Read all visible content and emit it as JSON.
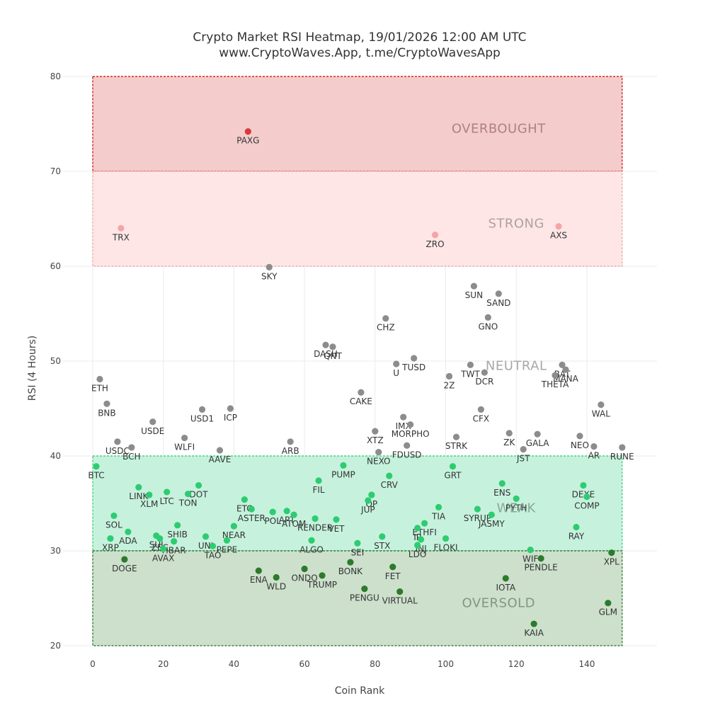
{
  "chart_data": {
    "type": "scatter",
    "title": "Crypto Market RSI Heatmap, 19/01/2026 12:00 AM UTC",
    "subtitle": "www.CryptoWaves.App, t.me/CryptoWavesApp",
    "xlabel": "Coin Rank",
    "ylabel": "RSI (4 Hours)",
    "xlim": [
      -4,
      160
    ],
    "ylim": [
      20,
      80
    ],
    "xticks": [
      0,
      20,
      40,
      60,
      80,
      100,
      120,
      140
    ],
    "yticks": [
      20,
      30,
      40,
      50,
      60,
      70,
      80
    ],
    "grid": true,
    "zones": [
      {
        "name": "OVERBOUGHT",
        "from": 70,
        "to": 80,
        "x_from": 0,
        "x_to": 150,
        "fill": "#f4cccc",
        "stroke": "#cc0000",
        "text": "#b08080",
        "label_x": 115,
        "label_y": 74.5
      },
      {
        "name": "STRONG",
        "from": 60,
        "to": 70,
        "x_from": 0,
        "x_to": 150,
        "fill": "#ffe6e6",
        "stroke": "#e8a0a0",
        "text": "#b0a0a0",
        "label_x": 120,
        "label_y": 64.5
      },
      {
        "name": "NEUTRAL",
        "from": 40,
        "to": 60,
        "x_from": 0,
        "x_to": 150,
        "fill": "none",
        "stroke": "none",
        "text": "#a8a8a8",
        "label_x": 120,
        "label_y": 49.5
      },
      {
        "name": "WEAK",
        "from": 30,
        "to": 40,
        "x_from": 0,
        "x_to": 150,
        "fill": "#c6f2dd",
        "stroke": "#2ecc71",
        "text": "#88a898",
        "label_x": 120,
        "label_y": 34.5
      },
      {
        "name": "OVERSOLD",
        "from": 20,
        "to": 30,
        "x_from": 0,
        "x_to": 150,
        "fill": "#cce0cc",
        "stroke": "#1e6b1e",
        "text": "#809880",
        "label_x": 115,
        "label_y": 24.5
      }
    ],
    "colors": {
      "overbought": "#d63a3a",
      "strong": "#f4a6a6",
      "neutral": "#8c8c8c",
      "weak": "#2ecc71",
      "oversold": "#2d7a2d"
    },
    "points": [
      {
        "name": "PAXG",
        "x": 44,
        "y": 74.2
      },
      {
        "name": "TRX",
        "x": 8,
        "y": 64.0
      },
      {
        "name": "ZRO",
        "x": 97,
        "y": 63.3
      },
      {
        "name": "AXS",
        "x": 132,
        "y": 64.2
      },
      {
        "name": "SKY",
        "x": 50,
        "y": 59.9
      },
      {
        "name": "SUN",
        "x": 108,
        "y": 57.9
      },
      {
        "name": "SAND",
        "x": 115,
        "y": 57.1
      },
      {
        "name": "GNO",
        "x": 112,
        "y": 54.6
      },
      {
        "name": "CHZ",
        "x": 83,
        "y": 54.5
      },
      {
        "name": "DASH",
        "x": 66,
        "y": 51.7
      },
      {
        "name": "QNT",
        "x": 68,
        "y": 51.5
      },
      {
        "name": "TUSD",
        "x": 91,
        "y": 50.3
      },
      {
        "name": "U",
        "x": 86,
        "y": 49.7
      },
      {
        "name": "TWT",
        "x": 107,
        "y": 49.6
      },
      {
        "name": "DCR",
        "x": 111,
        "y": 48.8
      },
      {
        "name": "2Z",
        "x": 101,
        "y": 48.4
      },
      {
        "name": "BAT",
        "x": 133,
        "y": 49.6
      },
      {
        "name": "MANA",
        "x": 134,
        "y": 49.1
      },
      {
        "name": "THETA",
        "x": 131,
        "y": 48.5
      },
      {
        "name": "ETH",
        "x": 2,
        "y": 48.1
      },
      {
        "name": "CAKE",
        "x": 76,
        "y": 46.7
      },
      {
        "name": "BNB",
        "x": 4,
        "y": 45.5
      },
      {
        "name": "WAL",
        "x": 144,
        "y": 45.4
      },
      {
        "name": "ICP",
        "x": 39,
        "y": 45.0
      },
      {
        "name": "USD1",
        "x": 31,
        "y": 44.9
      },
      {
        "name": "CFX",
        "x": 110,
        "y": 44.9
      },
      {
        "name": "IMX",
        "x": 88,
        "y": 44.1
      },
      {
        "name": "MORPHO",
        "x": 90,
        "y": 43.3
      },
      {
        "name": "USDE",
        "x": 17,
        "y": 43.6
      },
      {
        "name": "XTZ",
        "x": 80,
        "y": 42.6
      },
      {
        "name": "ZK",
        "x": 118,
        "y": 42.4
      },
      {
        "name": "GALA",
        "x": 126,
        "y": 42.3
      },
      {
        "name": "STRK",
        "x": 103,
        "y": 42.0
      },
      {
        "name": "NEO",
        "x": 138,
        "y": 42.1
      },
      {
        "name": "WLFI",
        "x": 26,
        "y": 41.9
      },
      {
        "name": "ARB",
        "x": 56,
        "y": 41.5
      },
      {
        "name": "USDC",
        "x": 7,
        "y": 41.5
      },
      {
        "name": "FDUSD",
        "x": 89,
        "y": 41.1
      },
      {
        "name": "BCH",
        "x": 11,
        "y": 40.9
      },
      {
        "name": "AR",
        "x": 142,
        "y": 41.0
      },
      {
        "name": "RUNE",
        "x": 150,
        "y": 40.9
      },
      {
        "name": "JST",
        "x": 122,
        "y": 40.7
      },
      {
        "name": "AAVE",
        "x": 36,
        "y": 40.6
      },
      {
        "name": "NEXO",
        "x": 81,
        "y": 40.4
      },
      {
        "name": "BTC",
        "x": 1,
        "y": 38.9
      },
      {
        "name": "PUMP",
        "x": 71,
        "y": 39.0
      },
      {
        "name": "GRT",
        "x": 102,
        "y": 38.9
      },
      {
        "name": "FIL",
        "x": 64,
        "y": 37.4
      },
      {
        "name": "CRV",
        "x": 84,
        "y": 37.9
      },
      {
        "name": "ENS",
        "x": 116,
        "y": 37.1
      },
      {
        "name": "DEXE",
        "x": 139,
        "y": 36.9
      },
      {
        "name": "DOT",
        "x": 30,
        "y": 36.9
      },
      {
        "name": "LINK",
        "x": 13,
        "y": 36.7
      },
      {
        "name": "LTC",
        "x": 21,
        "y": 36.2
      },
      {
        "name": "XLM",
        "x": 16,
        "y": 35.9
      },
      {
        "name": "TON",
        "x": 27,
        "y": 36.0
      },
      {
        "name": "OP",
        "x": 79,
        "y": 35.9
      },
      {
        "name": "COMP",
        "x": 140,
        "y": 35.7
      },
      {
        "name": "PYTH",
        "x": 120,
        "y": 35.5
      },
      {
        "name": "JUP",
        "x": 78,
        "y": 35.3
      },
      {
        "name": "ETC",
        "x": 43,
        "y": 35.4
      },
      {
        "name": "ASTER",
        "x": 45,
        "y": 34.4
      },
      {
        "name": "TIA",
        "x": 98,
        "y": 34.6
      },
      {
        "name": "SYRUP",
        "x": 109,
        "y": 34.4
      },
      {
        "name": "POL",
        "x": 51,
        "y": 34.1
      },
      {
        "name": "APT",
        "x": 55,
        "y": 34.2
      },
      {
        "name": "ATOM",
        "x": 57,
        "y": 33.8
      },
      {
        "name": "SOL",
        "x": 6,
        "y": 33.7
      },
      {
        "name": "JASMY",
        "x": 113,
        "y": 33.8
      },
      {
        "name": "RENDER",
        "x": 63,
        "y": 33.4
      },
      {
        "name": "VET",
        "x": 69,
        "y": 33.3
      },
      {
        "name": "ETHFI",
        "x": 94,
        "y": 32.9
      },
      {
        "name": "SHIB",
        "x": 24,
        "y": 32.7
      },
      {
        "name": "NEAR",
        "x": 40,
        "y": 32.6
      },
      {
        "name": "IP",
        "x": 92,
        "y": 32.4
      },
      {
        "name": "RAY",
        "x": 137,
        "y": 32.5
      },
      {
        "name": "ADA",
        "x": 10,
        "y": 32.0
      },
      {
        "name": "STX",
        "x": 82,
        "y": 31.5
      },
      {
        "name": "SUI",
        "x": 18,
        "y": 31.6
      },
      {
        "name": "ZEC",
        "x": 19,
        "y": 31.3
      },
      {
        "name": "XRP",
        "x": 5,
        "y": 31.3
      },
      {
        "name": "UNI",
        "x": 32,
        "y": 31.5
      },
      {
        "name": "INJ",
        "x": 93,
        "y": 31.2
      },
      {
        "name": "FLOKI",
        "x": 100,
        "y": 31.3
      },
      {
        "name": "HBAR",
        "x": 23,
        "y": 31.0
      },
      {
        "name": "PEPE",
        "x": 38,
        "y": 31.1
      },
      {
        "name": "ALGO",
        "x": 62,
        "y": 31.1
      },
      {
        "name": "SEI",
        "x": 75,
        "y": 30.8
      },
      {
        "name": "TAO",
        "x": 34,
        "y": 30.5
      },
      {
        "name": "AVAX",
        "x": 20,
        "y": 30.2
      },
      {
        "name": "LDO",
        "x": 92,
        "y": 30.6
      },
      {
        "name": "WIF",
        "x": 124,
        "y": 30.1
      },
      {
        "name": "XPL",
        "x": 147,
        "y": 29.8
      },
      {
        "name": "PENDLE",
        "x": 127,
        "y": 29.2
      },
      {
        "name": "DOGE",
        "x": 9,
        "y": 29.1
      },
      {
        "name": "BONK",
        "x": 73,
        "y": 28.8
      },
      {
        "name": "FET",
        "x": 85,
        "y": 28.3
      },
      {
        "name": "ENA",
        "x": 47,
        "y": 27.9
      },
      {
        "name": "ONDO",
        "x": 60,
        "y": 28.1
      },
      {
        "name": "TRUMP",
        "x": 65,
        "y": 27.4
      },
      {
        "name": "WLD",
        "x": 52,
        "y": 27.2
      },
      {
        "name": "IOTA",
        "x": 117,
        "y": 27.1
      },
      {
        "name": "PENGU",
        "x": 77,
        "y": 26.0
      },
      {
        "name": "VIRTUAL",
        "x": 87,
        "y": 25.7
      },
      {
        "name": "GLM",
        "x": 146,
        "y": 24.5
      },
      {
        "name": "KAIA",
        "x": 125,
        "y": 22.3
      }
    ]
  }
}
